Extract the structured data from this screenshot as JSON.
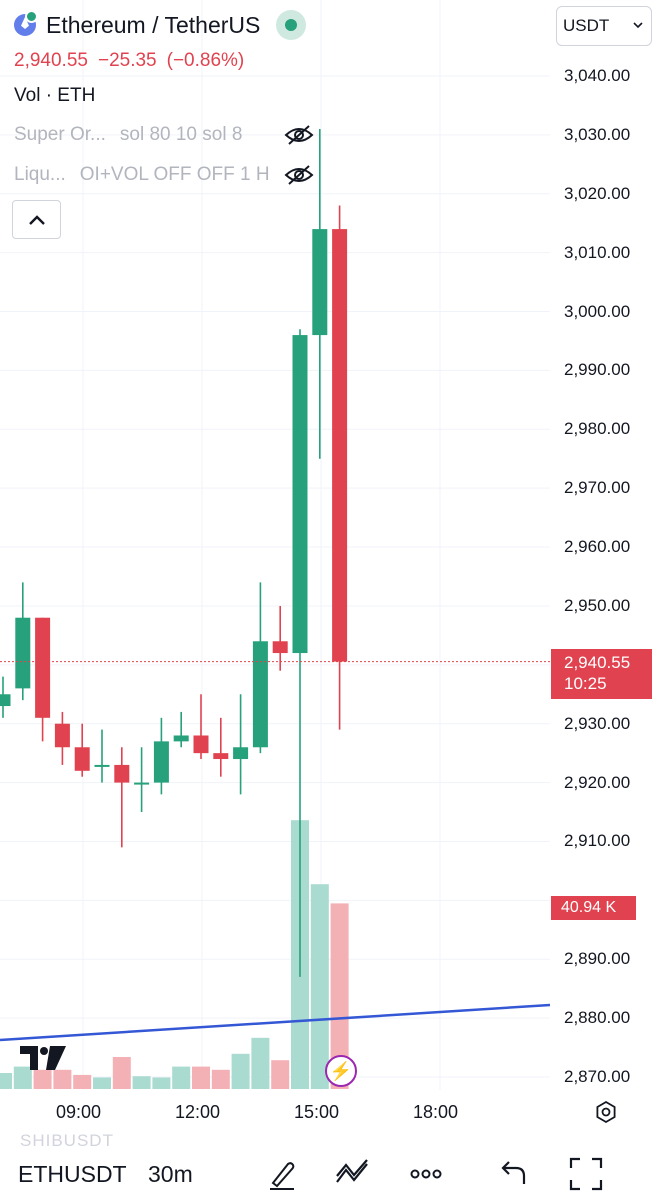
{
  "header": {
    "title": "Ethereum / TetherUS",
    "price": "2,940.55",
    "change": "−25.35",
    "change_pct": "(−0.86%)",
    "volume_label": "Vol · ETH",
    "currency": "USDT"
  },
  "indicators": [
    {
      "name": "Super Or...",
      "params": "sol 80 10 sol 8",
      "icon": "eye-off-icon"
    },
    {
      "name": "Liqu...",
      "params": "OI+VOL OFF OFF 1 H",
      "icon": "eye-off-icon"
    }
  ],
  "price_axis": {
    "ticks": [
      "3,040.00",
      "3,030.00",
      "3,020.00",
      "3,010.00",
      "3,000.00",
      "2,990.00",
      "2,980.00",
      "2,970.00",
      "2,960.00",
      "2,950.00",
      "2,930.00",
      "2,920.00",
      "2,910.00",
      "2,890.00",
      "2,880.00",
      "2,870.00"
    ],
    "last_price_label": "2,940.55",
    "countdown": "10:25",
    "volume_label": "40.94 K"
  },
  "time_axis": {
    "ticks": [
      "09:00",
      "12:00",
      "15:00",
      "18:00"
    ]
  },
  "bottom_bar": {
    "ghost_symbol": "SHIBUSDT",
    "symbol": "ETHUSDT",
    "interval": "30m"
  },
  "colors": {
    "up": "#26a17b",
    "down": "#e0434f",
    "trendline": "#3457d5"
  },
  "chart_data": {
    "type": "candlestick",
    "price_ylim": [
      2868,
      3045
    ],
    "last_price": 2940.55,
    "candles": [
      {
        "o": 2933.0,
        "h": 2938.0,
        "l": 2931.0,
        "c": 2935.0
      },
      {
        "o": 2936.0,
        "h": 2954.0,
        "l": 2934.0,
        "c": 2948.0
      },
      {
        "o": 2948.0,
        "h": 2948.0,
        "l": 2927.0,
        "c": 2931.0
      },
      {
        "o": 2930.0,
        "h": 2932.0,
        "l": 2923.0,
        "c": 2926.0
      },
      {
        "o": 2926.0,
        "h": 2930.0,
        "l": 2921.0,
        "c": 2922.0
      },
      {
        "o": 2923.0,
        "h": 2929.0,
        "l": 2920.0,
        "c": 2923.0
      },
      {
        "o": 2923.0,
        "h": 2926.0,
        "l": 2909.0,
        "c": 2920.0
      },
      {
        "o": 2920.0,
        "h": 2926.0,
        "l": 2915.0,
        "c": 2920.0
      },
      {
        "o": 2920.0,
        "h": 2931.0,
        "l": 2918.0,
        "c": 2927.0
      },
      {
        "o": 2927.0,
        "h": 2932.0,
        "l": 2926.0,
        "c": 2928.0
      },
      {
        "o": 2928.0,
        "h": 2935.0,
        "l": 2924.0,
        "c": 2925.0
      },
      {
        "o": 2925.0,
        "h": 2931.0,
        "l": 2921.0,
        "c": 2924.0
      },
      {
        "o": 2924.0,
        "h": 2935.0,
        "l": 2918.0,
        "c": 2926.0
      },
      {
        "o": 2926.0,
        "h": 2954.0,
        "l": 2925.0,
        "c": 2944.0
      },
      {
        "o": 2944.0,
        "h": 2950.0,
        "l": 2939.0,
        "c": 2942.0
      },
      {
        "o": 2942.0,
        "h": 2997.0,
        "l": 2887.0,
        "c": 2996.0
      },
      {
        "o": 2996.0,
        "h": 3031.0,
        "l": 2975.0,
        "c": 3014.0
      },
      {
        "o": 3014.0,
        "h": 3018.0,
        "l": 2929.0,
        "c": 2940.55
      }
    ],
    "volume": [
      0.25,
      0.35,
      0.3,
      0.3,
      0.22,
      0.18,
      0.5,
      0.2,
      0.18,
      0.35,
      0.35,
      0.3,
      0.55,
      0.8,
      0.45,
      4.2,
      3.2,
      2.9
    ]
  }
}
